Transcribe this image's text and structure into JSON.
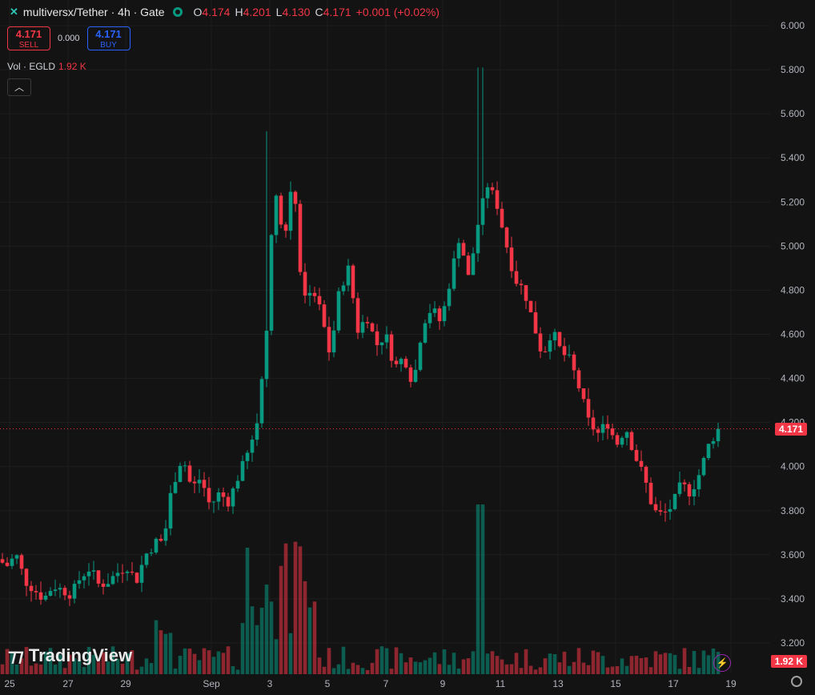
{
  "legend": {
    "symbol": "multiversx/Tether · 4h · Gate",
    "open_label": "O",
    "open": "4.174",
    "high_label": "H",
    "high": "4.201",
    "low_label": "L",
    "low": "4.130",
    "close_label": "C",
    "close": "4.171",
    "change": "+0.001 (+0.02%)"
  },
  "trade": {
    "sell_price": "4.171",
    "sell_label": "SELL",
    "spread": "0.000",
    "buy_price": "4.171",
    "buy_label": "BUY"
  },
  "volume": {
    "label": "Vol · EGLD",
    "value": "1.92 K"
  },
  "price_tag": "4.171",
  "volume_tag": "1.92 K",
  "brand": "TradingView",
  "colors": {
    "up": "#089981",
    "down": "#f23645",
    "background": "#131313"
  },
  "icons": [
    "multiversx-logo-icon",
    "market-status-icon",
    "collapse-chevron-icon",
    "tradingview-logo-icon",
    "flash-icon",
    "settings-gear-icon"
  ],
  "chart_data": {
    "type": "candlestick",
    "ylim": [
      3.13,
      6.1
    ],
    "y_ticks": [
      "6.000",
      "5.800",
      "5.600",
      "5.400",
      "5.200",
      "5.000",
      "4.800",
      "4.600",
      "4.400",
      "4.200",
      "4.000",
      "3.800",
      "3.600",
      "3.400",
      "3.200"
    ],
    "x_ticks": [
      "25",
      "27",
      "29",
      "Sep",
      "3",
      "5",
      "7",
      "9",
      "11",
      "13",
      "15",
      "17",
      "19"
    ],
    "last_price": 4.171,
    "anchors": [
      3.58,
      3.55,
      3.6,
      3.48,
      3.44,
      3.4,
      3.46,
      3.44,
      3.42,
      3.5,
      3.54,
      3.46,
      3.48,
      3.52,
      3.55,
      3.48,
      3.6,
      3.65,
      3.7,
      3.92,
      4.05,
      3.9,
      3.95,
      3.82,
      3.88,
      3.84,
      3.95,
      4.05,
      4.17,
      4.55,
      5.3,
      5.0,
      5.35,
      4.75,
      4.82,
      4.7,
      4.5,
      4.8,
      4.9,
      4.62,
      4.68,
      4.55,
      4.6,
      4.45,
      4.5,
      4.37,
      4.65,
      4.72,
      4.65,
      4.85,
      5.05,
      4.85,
      5.1,
      5.28,
      5.2,
      5.02,
      4.85,
      4.8,
      4.65,
      4.5,
      4.62,
      4.52,
      4.48,
      4.35,
      4.2,
      4.15,
      4.2,
      4.1,
      4.18,
      4.05,
      3.95,
      3.8,
      3.78,
      3.82,
      3.92,
      3.88,
      3.97,
      4.1,
      4.171
    ],
    "spikes": [
      {
        "x_tick": "3",
        "high": 5.52
      },
      {
        "x_tick": "11",
        "high": 5.81
      }
    ],
    "volume_max_label": "1.92 K"
  }
}
